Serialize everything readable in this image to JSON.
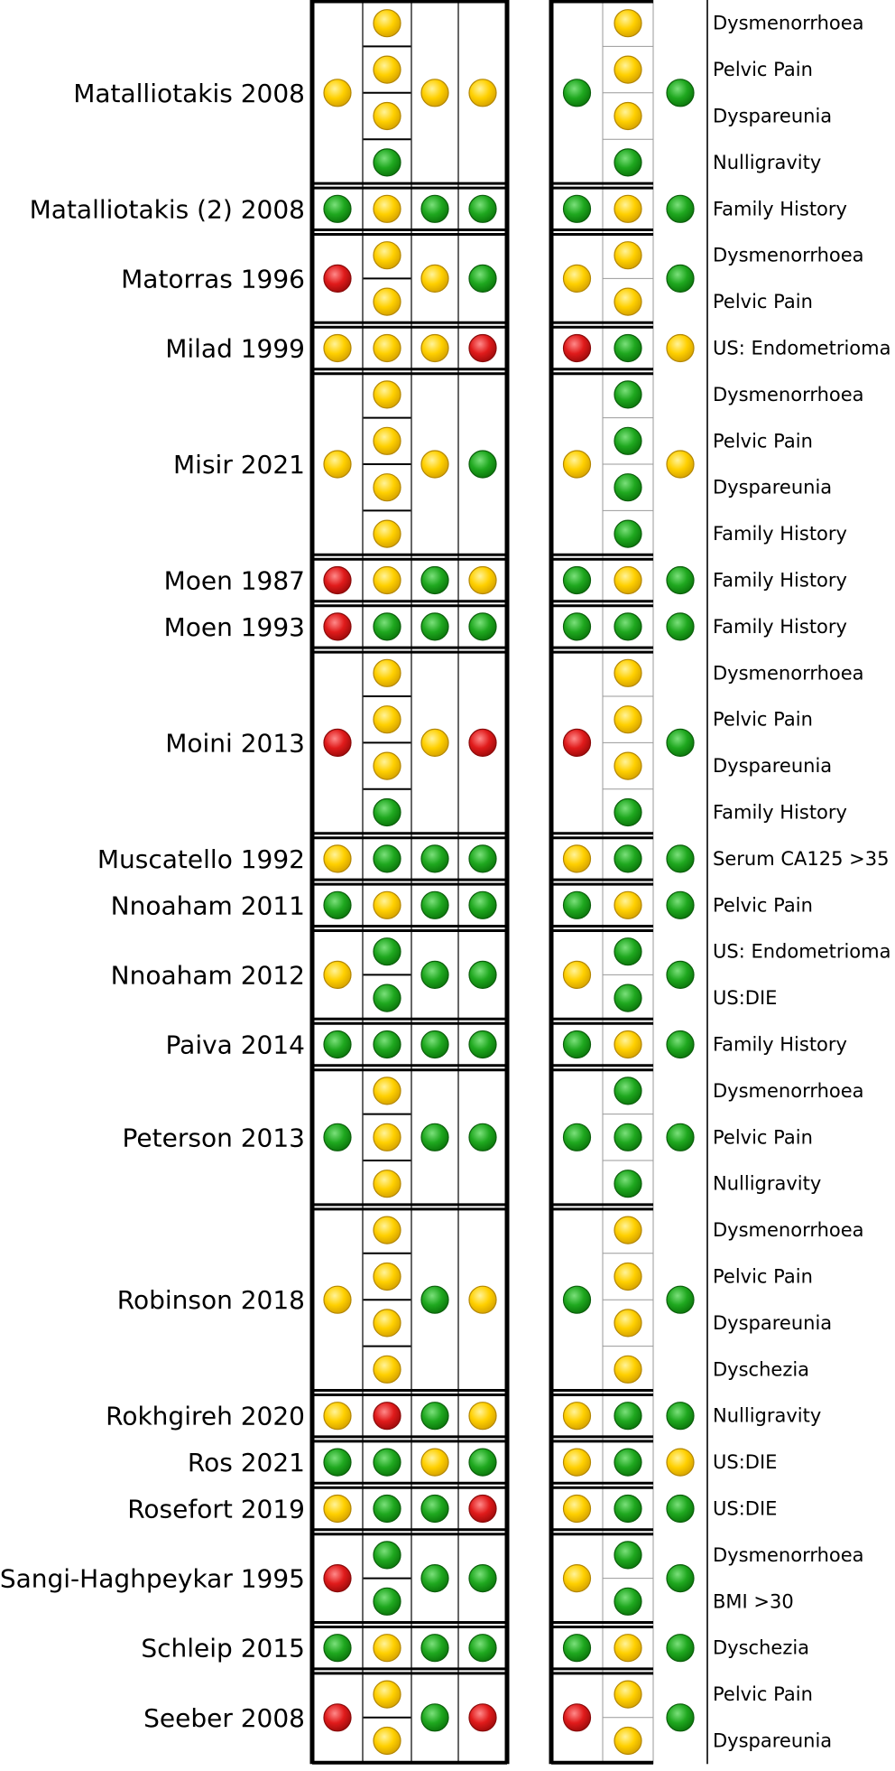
{
  "colors": {
    "low": "#22b022",
    "unclear": "#ffd200",
    "high": "#e01b1b"
  },
  "studies": [
    {
      "author": "Matalliotakis",
      "year": "2008",
      "outcomes": [
        "Dysmenorrhoea",
        "Pelvic Pain",
        "Dyspareunia",
        "Nulligravity"
      ],
      "left": [
        "unclear",
        [
          "unclear",
          "unclear",
          "unclear",
          "low"
        ],
        "unclear",
        "unclear"
      ],
      "right": [
        "low",
        [
          "unclear",
          "unclear",
          "unclear",
          "low"
        ],
        "low"
      ]
    },
    {
      "author": "Matalliotakis (2)",
      "year": "2008",
      "outcomes": [
        "Family History"
      ],
      "left": [
        "low",
        [
          "unclear"
        ],
        "low",
        "low"
      ],
      "right": [
        "low",
        [
          "unclear"
        ],
        "low"
      ]
    },
    {
      "author": "Matorras",
      "year": "1996",
      "outcomes": [
        "Dysmenorrhoea",
        "Pelvic Pain"
      ],
      "left": [
        "high",
        [
          "unclear",
          "unclear"
        ],
        "unclear",
        "low"
      ],
      "right": [
        "unclear",
        [
          "unclear",
          "unclear"
        ],
        "low"
      ]
    },
    {
      "author": "Milad",
      "year": "1999",
      "outcomes": [
        "US: Endometrioma"
      ],
      "left": [
        "unclear",
        [
          "unclear"
        ],
        "unclear",
        "high"
      ],
      "right": [
        "high",
        [
          "low"
        ],
        "unclear"
      ]
    },
    {
      "author": "Misir",
      "year": "2021",
      "outcomes": [
        "Dysmenorrhoea",
        "Pelvic Pain",
        "Dyspareunia",
        "Family History"
      ],
      "left": [
        "unclear",
        [
          "unclear",
          "unclear",
          "unclear",
          "unclear"
        ],
        "unclear",
        "low"
      ],
      "right": [
        "unclear",
        [
          "low",
          "low",
          "low",
          "low"
        ],
        "unclear"
      ]
    },
    {
      "author": "Moen",
      "year": "1987",
      "outcomes": [
        "Family History"
      ],
      "left": [
        "high",
        [
          "unclear"
        ],
        "low",
        "unclear"
      ],
      "right": [
        "low",
        [
          "unclear"
        ],
        "low"
      ]
    },
    {
      "author": "Moen",
      "year": "1993",
      "outcomes": [
        "Family History"
      ],
      "left": [
        "high",
        [
          "low"
        ],
        "low",
        "low"
      ],
      "right": [
        "low",
        [
          "low"
        ],
        "low"
      ]
    },
    {
      "author": "Moini",
      "year": "2013",
      "outcomes": [
        "Dysmenorrhoea",
        "Pelvic Pain",
        "Dyspareunia",
        "Family History"
      ],
      "left": [
        "high",
        [
          "unclear",
          "unclear",
          "unclear",
          "low"
        ],
        "unclear",
        "high"
      ],
      "right": [
        "high",
        [
          "unclear",
          "unclear",
          "unclear",
          "low"
        ],
        "low"
      ]
    },
    {
      "author": "Muscatello",
      "year": "1992",
      "outcomes": [
        "Serum CA125 >35"
      ],
      "left": [
        "unclear",
        [
          "low"
        ],
        "low",
        "low"
      ],
      "right": [
        "unclear",
        [
          "low"
        ],
        "low"
      ]
    },
    {
      "author": "Nnoaham",
      "year": "2011",
      "outcomes": [
        "Pelvic Pain"
      ],
      "left": [
        "low",
        [
          "unclear"
        ],
        "low",
        "low"
      ],
      "right": [
        "low",
        [
          "unclear"
        ],
        "low"
      ]
    },
    {
      "author": "Nnoaham",
      "year": "2012",
      "outcomes": [
        "US: Endometrioma",
        "US:DIE"
      ],
      "left": [
        "unclear",
        [
          "low",
          "low"
        ],
        "low",
        "low"
      ],
      "right": [
        "unclear",
        [
          "low",
          "low"
        ],
        "low"
      ]
    },
    {
      "author": "Paiva",
      "year": "2014",
      "outcomes": [
        "Family History"
      ],
      "left": [
        "low",
        [
          "low"
        ],
        "low",
        "low"
      ],
      "right": [
        "low",
        [
          "unclear"
        ],
        "low"
      ]
    },
    {
      "author": "Peterson",
      "year": "2013",
      "outcomes": [
        "Dysmenorrhoea",
        "Pelvic Pain",
        "Nulligravity"
      ],
      "left": [
        "low",
        [
          "unclear",
          "unclear",
          "unclear"
        ],
        "low",
        "low"
      ],
      "right": [
        "low",
        [
          "low",
          "low",
          "low"
        ],
        "low"
      ]
    },
    {
      "author": "Robinson",
      "year": "2018",
      "outcomes": [
        "Dysmenorrhoea",
        "Pelvic Pain",
        "Dyspareunia",
        "Dyschezia"
      ],
      "left": [
        "unclear",
        [
          "unclear",
          "unclear",
          "unclear",
          "unclear"
        ],
        "low",
        "unclear"
      ],
      "right": [
        "low",
        [
          "unclear",
          "unclear",
          "unclear",
          "unclear"
        ],
        "low"
      ]
    },
    {
      "author": "Rokhgireh",
      "year": "2020",
      "outcomes": [
        "Nulligravity"
      ],
      "left": [
        "unclear",
        [
          "high"
        ],
        "low",
        "unclear"
      ],
      "right": [
        "unclear",
        [
          "low"
        ],
        "low"
      ]
    },
    {
      "author": "Ros",
      "year": "2021",
      "outcomes": [
        "US:DIE"
      ],
      "left": [
        "low",
        [
          "low"
        ],
        "unclear",
        "low"
      ],
      "right": [
        "unclear",
        [
          "low"
        ],
        "unclear"
      ]
    },
    {
      "author": "Rosefort",
      "year": "2019",
      "outcomes": [
        "US:DIE"
      ],
      "left": [
        "unclear",
        [
          "low"
        ],
        "low",
        "high"
      ],
      "right": [
        "unclear",
        [
          "low"
        ],
        "low"
      ]
    },
    {
      "author": "Sangi-Haghpeykar",
      "year": "1995",
      "outcomes": [
        "Dysmenorrhoea",
        "BMI >30"
      ],
      "left": [
        "high",
        [
          "low",
          "low"
        ],
        "low",
        "low"
      ],
      "right": [
        "unclear",
        [
          "low",
          "low"
        ],
        "low"
      ]
    },
    {
      "author": "Schleip",
      "year": "2015",
      "outcomes": [
        "Dyschezia"
      ],
      "left": [
        "low",
        [
          "unclear"
        ],
        "low",
        "low"
      ],
      "right": [
        "low",
        [
          "unclear"
        ],
        "low"
      ]
    },
    {
      "author": "Seeber",
      "year": "2008",
      "outcomes": [
        "Pelvic Pain",
        "Dyspareunia"
      ],
      "left": [
        "high",
        [
          "unclear",
          "unclear"
        ],
        "low",
        "high"
      ],
      "right": [
        "high",
        [
          "unclear",
          "unclear"
        ],
        "low"
      ]
    }
  ]
}
